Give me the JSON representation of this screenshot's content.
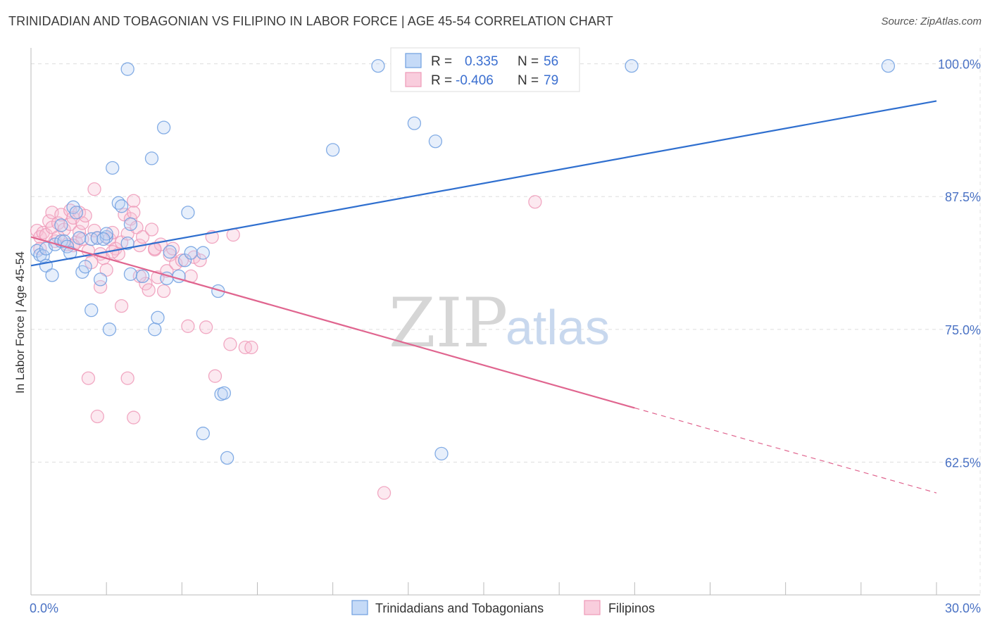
{
  "header": {
    "title": "TRINIDADIAN AND TOBAGONIAN VS FILIPINO IN LABOR FORCE | AGE 45-54 CORRELATION CHART",
    "source": "Source: ZipAtlas.com"
  },
  "watermark": {
    "zip": "ZIP",
    "atlas": "atlas"
  },
  "legend": {
    "rows": [
      {
        "r_label": "R =",
        "r_value": "0.335",
        "n_label": "N =",
        "n_value": "56"
      },
      {
        "r_label": "R =",
        "r_value": "-0.406",
        "n_label": "N =",
        "n_value": "79"
      }
    ]
  },
  "bottom_legend": {
    "items": [
      "Trinidadians and Tobagonians",
      "Filipinos"
    ]
  },
  "chart_data": {
    "type": "scatter",
    "title": "TRINIDADIAN AND TOBAGONIAN VS FILIPINO IN LABOR FORCE | AGE 45-54 CORRELATION CHART",
    "xlabel": "",
    "ylabel": "In Labor Force | Age 45-54",
    "xlim": [
      0,
      30
    ],
    "ylim": [
      50,
      101.5
    ],
    "x_tick_labels": [
      "0.0%",
      "30.0%"
    ],
    "y_tick_labels": [
      "100.0%",
      "87.5%",
      "75.0%",
      "62.5%"
    ],
    "y_ticks": [
      100,
      87.5,
      75,
      62.5
    ],
    "grid": true,
    "legend_position": "top-center",
    "colors": {
      "trinidadian": "#6f9fe0",
      "trinidadian_line": "#2f6fcf",
      "filipino": "#ee9ab8",
      "filipino_line": "#e0658f"
    },
    "series": [
      {
        "name": "Trinidadians and Tobagonians",
        "color": "#6f9fe0",
        "points": [
          [
            0.2,
            82.4
          ],
          [
            0.3,
            82.0
          ],
          [
            0.4,
            81.9
          ],
          [
            0.5,
            82.6
          ],
          [
            0.5,
            81.0
          ],
          [
            0.7,
            80.1
          ],
          [
            0.8,
            83.0
          ],
          [
            1.0,
            83.3
          ],
          [
            1.0,
            84.8
          ],
          [
            1.1,
            83.3
          ],
          [
            1.2,
            82.8
          ],
          [
            1.3,
            82.2
          ],
          [
            1.4,
            86.5
          ],
          [
            1.5,
            86.0
          ],
          [
            1.6,
            83.6
          ],
          [
            1.7,
            80.4
          ],
          [
            1.8,
            80.9
          ],
          [
            2.0,
            83.5
          ],
          [
            2.0,
            76.8
          ],
          [
            2.2,
            83.6
          ],
          [
            2.3,
            79.7
          ],
          [
            2.5,
            83.7
          ],
          [
            2.5,
            84.0
          ],
          [
            2.6,
            75.0
          ],
          [
            2.7,
            90.2
          ],
          [
            2.9,
            86.9
          ],
          [
            3.0,
            86.6
          ],
          [
            3.2,
            83.1
          ],
          [
            3.2,
            99.5
          ],
          [
            3.3,
            84.9
          ],
          [
            3.3,
            80.2
          ],
          [
            3.7,
            80.0
          ],
          [
            4.0,
            91.1
          ],
          [
            4.1,
            75.0
          ],
          [
            4.2,
            76.1
          ],
          [
            4.4,
            94.0
          ],
          [
            4.5,
            79.8
          ],
          [
            4.6,
            82.3
          ],
          [
            4.9,
            80.0
          ],
          [
            5.1,
            81.5
          ],
          [
            5.2,
            86.0
          ],
          [
            5.3,
            82.2
          ],
          [
            5.7,
            82.2
          ],
          [
            6.2,
            78.6
          ],
          [
            6.3,
            68.9
          ],
          [
            6.5,
            62.9
          ],
          [
            5.7,
            65.2
          ],
          [
            6.4,
            69.0
          ],
          [
            10.0,
            91.9
          ],
          [
            11.5,
            99.8
          ],
          [
            12.7,
            94.4
          ],
          [
            13.4,
            92.7
          ],
          [
            13.6,
            63.3
          ],
          [
            19.9,
            99.8
          ],
          [
            28.4,
            99.8
          ],
          [
            2.4,
            83.5
          ]
        ]
      },
      {
        "name": "Filipinos",
        "color": "#ee9ab8",
        "points": [
          [
            0.2,
            84.3
          ],
          [
            0.3,
            83.7
          ],
          [
            0.4,
            84.1
          ],
          [
            0.5,
            83.9
          ],
          [
            0.6,
            85.2
          ],
          [
            0.7,
            84.6
          ],
          [
            0.7,
            86.0
          ],
          [
            0.8,
            83.3
          ],
          [
            0.9,
            85.0
          ],
          [
            1.0,
            85.8
          ],
          [
            1.1,
            84.4
          ],
          [
            1.2,
            83.0
          ],
          [
            1.3,
            86.2
          ],
          [
            1.3,
            84.9
          ],
          [
            1.4,
            85.5
          ],
          [
            1.5,
            83.2
          ],
          [
            1.6,
            84.2
          ],
          [
            1.6,
            86.0
          ],
          [
            1.7,
            85.0
          ],
          [
            1.7,
            83.5
          ],
          [
            1.8,
            85.7
          ],
          [
            1.9,
            82.4
          ],
          [
            2.0,
            81.3
          ],
          [
            2.1,
            84.3
          ],
          [
            2.1,
            88.2
          ],
          [
            2.2,
            83.6
          ],
          [
            2.3,
            82.1
          ],
          [
            2.3,
            79.0
          ],
          [
            2.4,
            81.7
          ],
          [
            2.5,
            80.6
          ],
          [
            2.6,
            83.5
          ],
          [
            2.7,
            84.1
          ],
          [
            2.8,
            82.6
          ],
          [
            2.9,
            82.1
          ],
          [
            3.0,
            83.2
          ],
          [
            3.0,
            77.2
          ],
          [
            3.1,
            85.8
          ],
          [
            3.2,
            84.0
          ],
          [
            3.3,
            85.4
          ],
          [
            3.4,
            87.1
          ],
          [
            3.4,
            86.0
          ],
          [
            3.5,
            84.6
          ],
          [
            3.6,
            82.9
          ],
          [
            3.7,
            83.7
          ],
          [
            3.8,
            79.3
          ],
          [
            3.9,
            78.7
          ],
          [
            4.0,
            84.4
          ],
          [
            4.1,
            82.5
          ],
          [
            4.2,
            79.9
          ],
          [
            4.3,
            83.0
          ],
          [
            4.4,
            78.6
          ],
          [
            4.5,
            80.5
          ],
          [
            4.6,
            82.0
          ],
          [
            4.7,
            82.6
          ],
          [
            4.8,
            81.2
          ],
          [
            5.0,
            81.5
          ],
          [
            5.2,
            75.3
          ],
          [
            5.3,
            80.0
          ],
          [
            5.4,
            81.8
          ],
          [
            5.6,
            81.5
          ],
          [
            5.8,
            75.2
          ],
          [
            6.0,
            83.7
          ],
          [
            6.1,
            70.6
          ],
          [
            6.6,
            73.6
          ],
          [
            6.7,
            83.9
          ],
          [
            7.1,
            73.3
          ],
          [
            7.3,
            73.3
          ],
          [
            1.9,
            70.4
          ],
          [
            2.2,
            66.8
          ],
          [
            3.2,
            70.4
          ],
          [
            3.4,
            66.7
          ],
          [
            4.1,
            82.6
          ],
          [
            11.7,
            59.6
          ],
          [
            16.7,
            87.0
          ],
          [
            0.3,
            82.6
          ],
          [
            0.9,
            83.7
          ],
          [
            2.7,
            82.3
          ],
          [
            1.4,
            82.9
          ],
          [
            3.6,
            80.0
          ]
        ]
      }
    ],
    "trendlines": [
      {
        "series": "Trinidadians and Tobagonians",
        "x": [
          0,
          30
        ],
        "y": [
          81.0,
          96.5
        ],
        "style": "solid"
      },
      {
        "series": "Filipinos",
        "x": [
          0,
          20
        ],
        "y": [
          83.7,
          67.6
        ],
        "style": "solid"
      },
      {
        "series": "Filipinos",
        "x": [
          20,
          30
        ],
        "y": [
          67.6,
          59.6
        ],
        "style": "dashed"
      }
    ]
  }
}
